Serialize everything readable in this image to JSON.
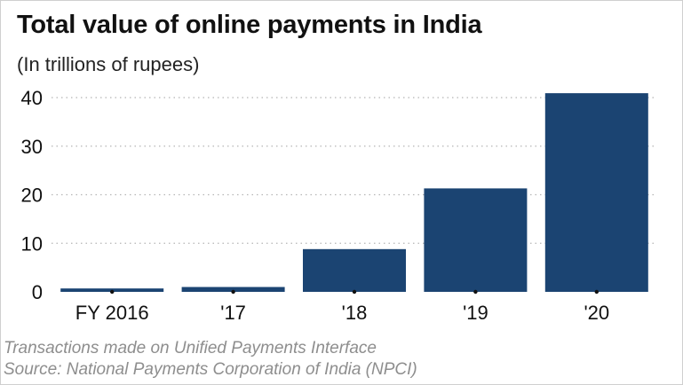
{
  "header": {
    "title": "Total value of online payments in India",
    "subtitle": "(In trillions of rupees)"
  },
  "footer": {
    "note": "Transactions made on Unified Payments Interface",
    "source": "Source: National Payments Corporation of India (NPCI)"
  },
  "colors": {
    "bar": "#1b4472",
    "grid": "#b5b5b5",
    "text": "#111111",
    "note": "#8e8e8e"
  },
  "chart_data": {
    "type": "bar",
    "title": "Total value of online payments in India",
    "subtitle": "(In trillions of rupees)",
    "xlabel": "",
    "ylabel": "",
    "categories": [
      "FY 2016",
      "'17",
      "'18",
      "'19",
      "'20"
    ],
    "values": [
      0.7,
      1.0,
      8.8,
      21.3,
      40.9
    ],
    "ylim": [
      0,
      40
    ],
    "yticks": [
      0,
      10,
      20,
      30,
      40
    ],
    "grid": "horizontal dotted",
    "legend": "none"
  }
}
